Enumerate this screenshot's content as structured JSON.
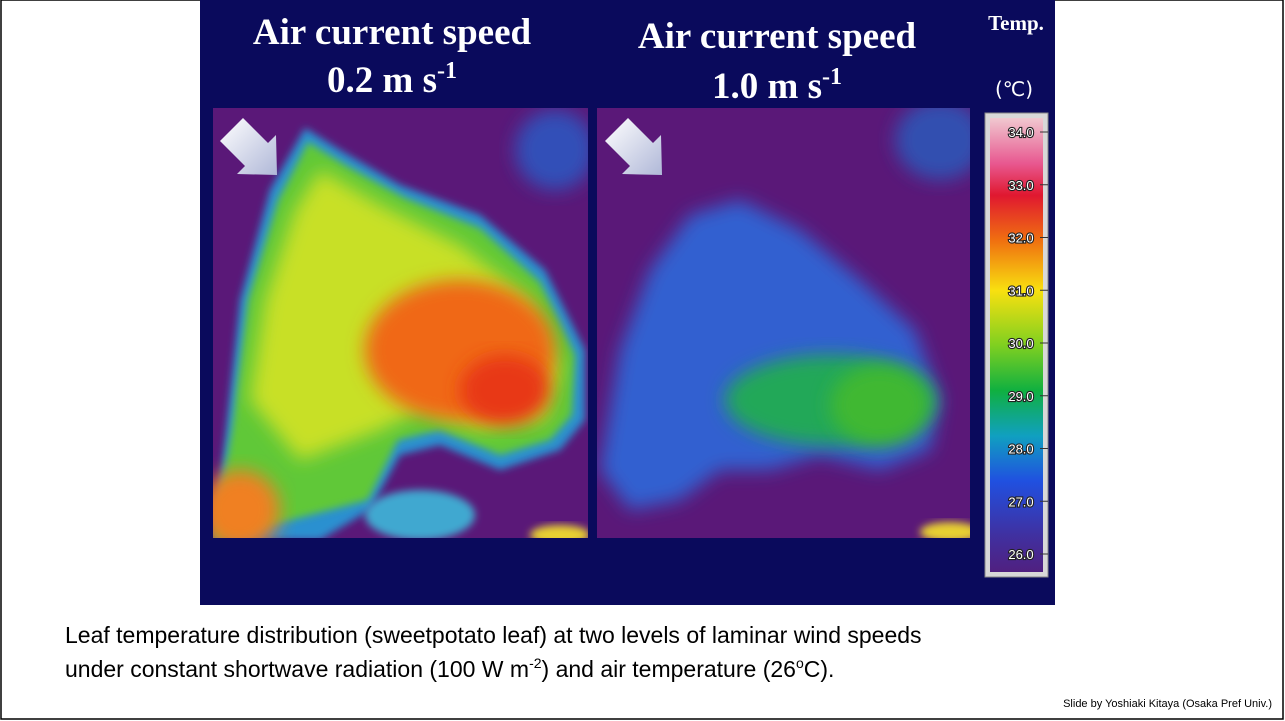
{
  "panels": [
    {
      "title_line1": "Air current speed",
      "title_line2": "0.2 m s",
      "title_sup": "-1"
    },
    {
      "title_line1": "Air current speed",
      "title_line2": "1.0 m s",
      "title_sup": "-1"
    }
  ],
  "colorbar": {
    "title": "Temp.",
    "unit": "(℃)",
    "ticks": [
      "34.0",
      "33.0",
      "32.0",
      "31.0",
      "30.0",
      "29.0",
      "28.0",
      "27.0",
      "26.0"
    ]
  },
  "caption": {
    "line1": "Leaf temperature distribution (sweetpotato leaf) at two levels of laminar wind speeds",
    "line2_a": "under constant shortwave radiation (100 W m",
    "line2_sup1": "-2",
    "line2_b": ") and air temperature (26",
    "line2_sup2": "o",
    "line2_c": "C)."
  },
  "credit": "Slide by Yoshiaki Kitaya (Osaka Pref Univ.)"
}
